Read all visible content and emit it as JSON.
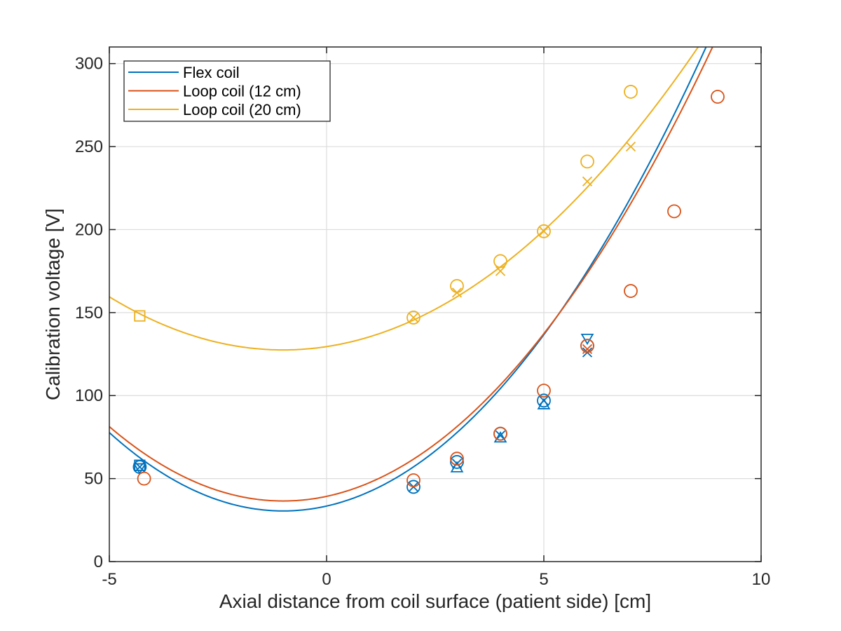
{
  "chart_data": {
    "type": "scatter",
    "title": "",
    "xlabel": "Axial distance from coil surface (patient side) [cm]",
    "ylabel": "Calibration voltage [V]",
    "xlim": [
      -5,
      10
    ],
    "ylim": [
      0,
      310
    ],
    "xticks": [
      -5,
      0,
      5,
      10
    ],
    "yticks": [
      0,
      50,
      100,
      150,
      200,
      250,
      300
    ],
    "xtick_labels": [
      "-5",
      "0",
      "5",
      "10"
    ],
    "ytick_labels": [
      "0",
      "50",
      "100",
      "150",
      "200",
      "250",
      "300"
    ],
    "grid": true,
    "legend_position": "top-left",
    "series": [
      {
        "name": "Flex coil",
        "color": "#0072BD",
        "fit": {
          "type": "quadratic",
          "vertex_x": -1.0,
          "vertex_y": 30.5,
          "a": 2.95
        },
        "markers": {
          "circle": [
            [
              -4.3,
              57
            ],
            [
              2,
              45
            ],
            [
              3,
              60
            ],
            [
              4,
              77
            ],
            [
              5,
              97
            ],
            [
              6,
              130
            ]
          ],
          "x": [
            [
              -4.3,
              57
            ],
            [
              2,
              45
            ],
            [
              3,
              59
            ],
            [
              4,
              76
            ],
            [
              5,
              97
            ],
            [
              6,
              126
            ]
          ],
          "square": [
            [
              -4.3,
              58
            ]
          ],
          "triangle": [
            [
              3,
              56
            ],
            [
              4,
              74
            ],
            [
              5,
              94
            ]
          ],
          "nabla": [
            [
              -4.3,
              57
            ],
            [
              6,
              135
            ]
          ]
        }
      },
      {
        "name": "Loop coil (12 cm)",
        "color": "#D95319",
        "fit": {
          "type": "quadratic",
          "vertex_x": -1.0,
          "vertex_y": 36.5,
          "a": 2.8
        },
        "markers": {
          "circle": [
            [
              -4.2,
              50
            ],
            [
              2,
              49
            ],
            [
              3,
              62
            ],
            [
              4,
              77
            ],
            [
              5,
              103
            ],
            [
              6,
              130
            ],
            [
              7,
              163
            ],
            [
              8,
              211
            ],
            [
              9,
              280
            ]
          ],
          "x": [
            [
              6,
              128
            ]
          ]
        }
      },
      {
        "name": "Loop coil (20 cm)",
        "color": "#EDB120",
        "fit": {
          "type": "quadratic",
          "vertex_x": -1.0,
          "vertex_y": 127.5,
          "a": 2.0
        },
        "markers": {
          "circle": [
            [
              2,
              147
            ],
            [
              3,
              166
            ],
            [
              4,
              181
            ],
            [
              5,
              199
            ],
            [
              6,
              241
            ],
            [
              7,
              283
            ]
          ],
          "x": [
            [
              2,
              147
            ],
            [
              3,
              162
            ],
            [
              4,
              175
            ],
            [
              5,
              199
            ],
            [
              6,
              229
            ],
            [
              7,
              250
            ]
          ],
          "square": [
            [
              -4.3,
              148
            ]
          ]
        }
      }
    ]
  }
}
